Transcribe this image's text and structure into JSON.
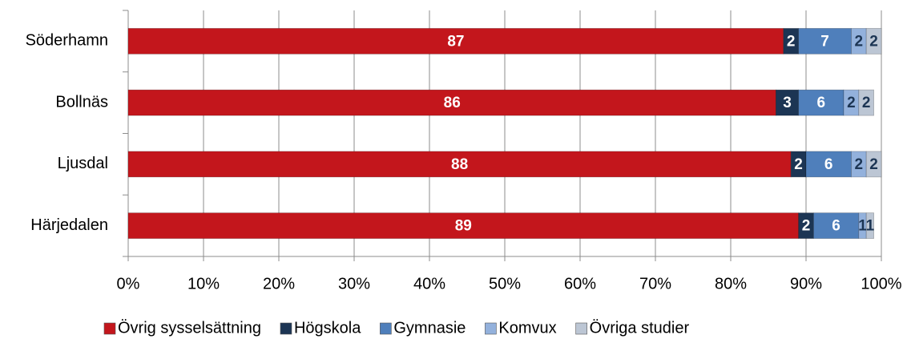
{
  "chart_data": {
    "type": "stacked_barh",
    "categories": [
      "Söderhamn",
      "Bollnäs",
      "Ljusdal",
      "Härjedalen"
    ],
    "series": [
      {
        "name": "Övrig sysselsättning",
        "color": "#c3161c",
        "label_color": "#ffffff",
        "values": [
          87,
          86,
          88,
          89
        ]
      },
      {
        "name": "Högskola",
        "color": "#1c3554",
        "label_color": "#ffffff",
        "values": [
          2,
          3,
          2,
          2
        ]
      },
      {
        "name": "Gymnasie",
        "color": "#4f7fbb",
        "label_color": "#ffffff",
        "values": [
          7,
          6,
          6,
          6
        ]
      },
      {
        "name": "Komvux",
        "color": "#93b1dc",
        "label_color": "#1c3554",
        "values": [
          2,
          2,
          2,
          1
        ]
      },
      {
        "name": "Övriga studier",
        "color": "#bcc6d4",
        "label_color": "#1c3554",
        "values": [
          2,
          2,
          2,
          1
        ]
      }
    ],
    "xlim": [
      0,
      100
    ],
    "xticks": [
      {
        "value": 0,
        "label": "0%"
      },
      {
        "value": 10,
        "label": "10%"
      },
      {
        "value": 20,
        "label": "20%"
      },
      {
        "value": 30,
        "label": "30%"
      },
      {
        "value": 40,
        "label": "40%"
      },
      {
        "value": 50,
        "label": "50%"
      },
      {
        "value": 60,
        "label": "60%"
      },
      {
        "value": 70,
        "label": "70%"
      },
      {
        "value": 80,
        "label": "80%"
      },
      {
        "value": 90,
        "label": "90%"
      },
      {
        "value": 100,
        "label": "100%"
      }
    ],
    "grid": true,
    "legend": "bottom"
  }
}
